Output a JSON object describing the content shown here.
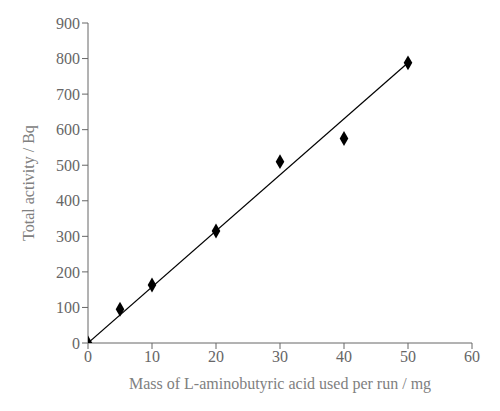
{
  "chart_data": {
    "type": "scatter",
    "xlabel": "Mass of L-aminobutyric  acid used per run / mg",
    "ylabel": "Total activity / Bq",
    "series": [
      {
        "type": "line",
        "x": [
          0,
          50
        ],
        "values": [
          0,
          788
        ],
        "color": "black",
        "line_style": "solid"
      },
      {
        "type": "scatter",
        "x": [
          0,
          5,
          10,
          20,
          30,
          40,
          50
        ],
        "values": [
          0,
          95,
          163,
          315,
          510,
          575,
          788
        ],
        "color": "black",
        "marker": "diamond"
      }
    ],
    "xlim": [
      0,
      60
    ],
    "ylim": [
      0,
      900
    ],
    "xticks": [
      0,
      10,
      20,
      30,
      40,
      50,
      60
    ],
    "yticks": [
      0,
      100,
      200,
      300,
      400,
      500,
      600,
      700,
      800,
      900
    ],
    "grid": false
  }
}
